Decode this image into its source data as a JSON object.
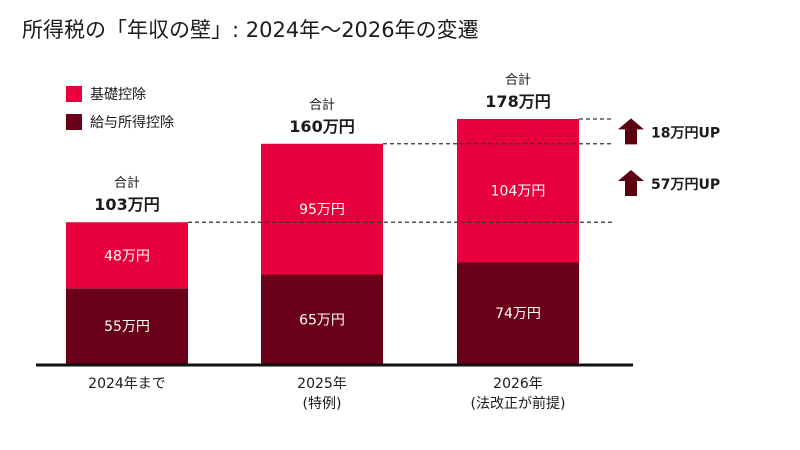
{
  "chart_data": {
    "type": "bar",
    "stacked": true,
    "title": "所得税の「年収の壁」: 2024年〜2026年の変遷",
    "categories": [
      [
        "2024年まで"
      ],
      [
        "2025年",
        "(特例)"
      ],
      [
        "2026年",
        "(法改正が前提)"
      ]
    ],
    "series": [
      {
        "name": "給与所得控除",
        "color": "#6b0019",
        "values": [
          55,
          65,
          74
        ],
        "labels": [
          "55万円",
          "65万円",
          "74万円"
        ]
      },
      {
        "name": "基礎控除",
        "color": "#e8003d",
        "values": [
          48,
          95,
          104
        ],
        "labels": [
          "48万円",
          "95万円",
          "104万円"
        ]
      }
    ],
    "totals": {
      "caption": "合計",
      "values": [
        103,
        160,
        178
      ],
      "labels": [
        "103万円",
        "160万円",
        "178万円"
      ]
    },
    "annotations": [
      {
        "text": "57万円UP",
        "from": 103,
        "to": 160
      },
      {
        "text": "18万円UP",
        "from": 160,
        "to": 178
      }
    ],
    "arrow_color": "#5a0012",
    "legend": {
      "placement": "top-left",
      "order": [
        "基礎控除",
        "給与所得控除"
      ]
    },
    "ylim": [
      0,
      178
    ],
    "grid": false
  }
}
